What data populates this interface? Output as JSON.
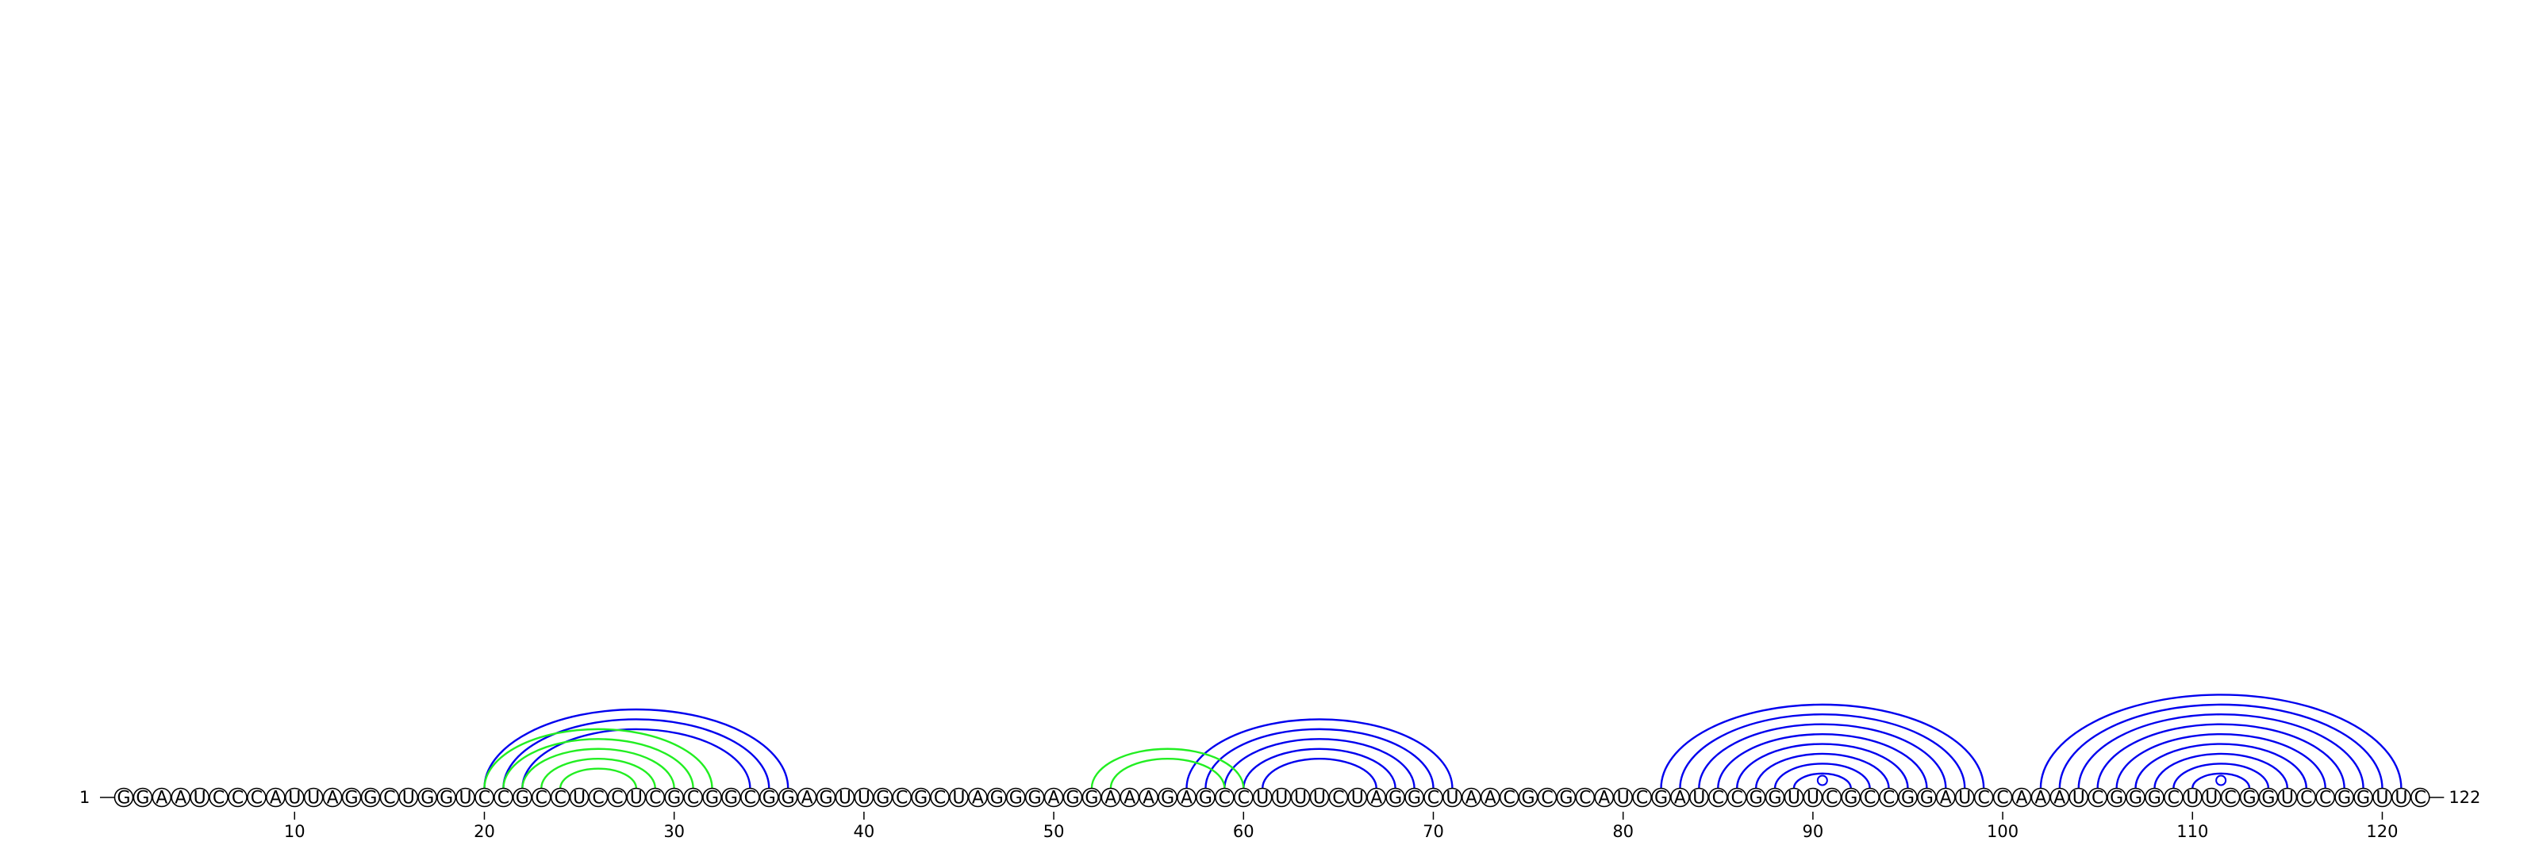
{
  "sequence": "GGAAUCCCAUUAGGCUGGUCCGCCUCCUCGCGGCGGAGUUGCGCUAGGGAGGAAAGAGCCUUUUCUAGGCUAACGCGCAUCGAUCCGGUUCGCCGGAUCCAAAUCGGGCUUCGGUCCGGUUC",
  "start_label": "1",
  "end_label": "122",
  "ticks": [
    10,
    20,
    30,
    40,
    50,
    60,
    70,
    80,
    90,
    100,
    110,
    120
  ],
  "colors": {
    "blue": "#0000ee",
    "green": "#22ee22"
  },
  "pairs_blue": [
    [
      20,
      36
    ],
    [
      21,
      35
    ],
    [
      22,
      34
    ],
    [
      57,
      71
    ],
    [
      58,
      70
    ],
    [
      59,
      69
    ],
    [
      60,
      68
    ],
    [
      61,
      67
    ],
    [
      82,
      99
    ],
    [
      83,
      98
    ],
    [
      84,
      97
    ],
    [
      85,
      96
    ],
    [
      86,
      95
    ],
    [
      87,
      94
    ],
    [
      88,
      93
    ],
    [
      89,
      92
    ],
    [
      102,
      121
    ],
    [
      103,
      120
    ],
    [
      104,
      119
    ],
    [
      105,
      118
    ],
    [
      106,
      117
    ],
    [
      107,
      116
    ],
    [
      108,
      115
    ],
    [
      109,
      114
    ],
    [
      110,
      113
    ]
  ],
  "pairs_green": [
    [
      20,
      32
    ],
    [
      21,
      31
    ],
    [
      22,
      30
    ],
    [
      23,
      29
    ],
    [
      24,
      28
    ],
    [
      52,
      60
    ],
    [
      53,
      59
    ]
  ],
  "loop_markers": [
    90.5,
    111.5
  ]
}
